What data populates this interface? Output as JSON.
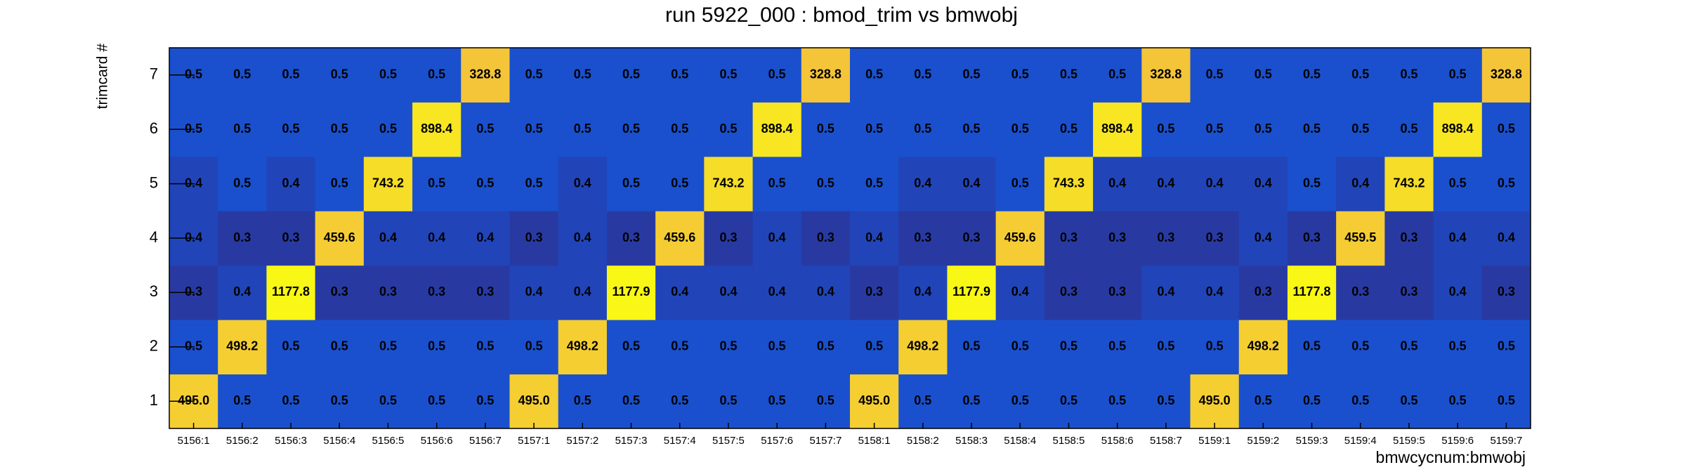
{
  "chart_data": {
    "type": "heatmap",
    "title": "run 5922_000 : bmod_trim vs bmwobj",
    "x_label": "bmwcycnum:bmwobj",
    "y_label": "trimcard #",
    "categories": [
      "5156:1",
      "5156:2",
      "5156:3",
      "5156:4",
      "5156:5",
      "5156:6",
      "5156:7",
      "5157:1",
      "5157:2",
      "5157:3",
      "5157:4",
      "5157:5",
      "5157:6",
      "5157:7",
      "5158:1",
      "5158:2",
      "5158:3",
      "5158:4",
      "5158:5",
      "5158:6",
      "5158:7",
      "5159:1",
      "5159:2",
      "5159:3",
      "5159:4",
      "5159:5",
      "5159:6",
      "5159:7"
    ],
    "ylim": [
      0.5,
      7.5
    ],
    "yticks": [
      1,
      2,
      3,
      4,
      5,
      6,
      7
    ],
    "values": [
      [
        495,
        0.5,
        0.5,
        0.5,
        0.5,
        0.5,
        0.5,
        495,
        0.5,
        0.5,
        0.5,
        0.5,
        0.5,
        0.5,
        495,
        0.5,
        0.5,
        0.5,
        0.5,
        0.5,
        0.5,
        495,
        0.5,
        0.5,
        0.5,
        0.5,
        0.5,
        0.5
      ],
      [
        0.5,
        498.2,
        0.5,
        0.5,
        0.5,
        0.5,
        0.5,
        0.5,
        498.2,
        0.5,
        0.5,
        0.5,
        0.5,
        0.5,
        0.5,
        498.2,
        0.5,
        0.5,
        0.5,
        0.5,
        0.5,
        0.5,
        498.2,
        0.5,
        0.5,
        0.5,
        0.5,
        0.5
      ],
      [
        0.3,
        0.4,
        1177.8,
        0.3,
        0.3,
        0.3,
        0.3,
        0.4,
        0.4,
        1177.9,
        0.4,
        0.4,
        0.4,
        0.4,
        0.3,
        0.4,
        1177.9,
        0.4,
        0.3,
        0.3,
        0.4,
        0.4,
        0.3,
        1177.8,
        0.3,
        0.3,
        0.4,
        0.3
      ],
      [
        0.4,
        0.3,
        0.3,
        459.6,
        0.4,
        0.4,
        0.4,
        0.3,
        0.4,
        0.3,
        459.6,
        0.3,
        0.4,
        0.3,
        0.4,
        0.3,
        0.3,
        459.6,
        0.3,
        0.3,
        0.3,
        0.3,
        0.4,
        0.3,
        459.5,
        0.3,
        0.4,
        0.4
      ],
      [
        0.4,
        0.5,
        0.4,
        0.5,
        743.2,
        0.5,
        0.5,
        0.5,
        0.4,
        0.5,
        0.5,
        743.2,
        0.5,
        0.5,
        0.5,
        0.4,
        0.4,
        0.5,
        743.3,
        0.4,
        0.4,
        0.4,
        0.4,
        0.5,
        0.4,
        743.2,
        0.5,
        0.5
      ],
      [
        0.5,
        0.5,
        0.5,
        0.5,
        0.5,
        898.4,
        0.5,
        0.5,
        0.5,
        0.5,
        0.5,
        0.5,
        898.4,
        0.5,
        0.5,
        0.5,
        0.5,
        0.5,
        0.5,
        898.4,
        0.5,
        0.5,
        0.5,
        0.5,
        0.5,
        0.5,
        898.4,
        0.5
      ],
      [
        0.5,
        0.5,
        0.5,
        0.5,
        0.5,
        0.5,
        328.8,
        0.5,
        0.5,
        0.5,
        0.5,
        0.5,
        0.5,
        328.8,
        0.5,
        0.5,
        0.5,
        0.5,
        0.5,
        0.5,
        328.8,
        0.5,
        0.5,
        0.5,
        0.5,
        0.5,
        0.5,
        328.8
      ]
    ],
    "value_labels": [
      [
        "495.0",
        "0.5",
        "0.5",
        "0.5",
        "0.5",
        "0.5",
        "0.5",
        "495.0",
        "0.5",
        "0.5",
        "0.5",
        "0.5",
        "0.5",
        "0.5",
        "495.0",
        "0.5",
        "0.5",
        "0.5",
        "0.5",
        "0.5",
        "0.5",
        "495.0",
        "0.5",
        "0.5",
        "0.5",
        "0.5",
        "0.5",
        "0.5"
      ],
      [
        "0.5",
        "498.2",
        "0.5",
        "0.5",
        "0.5",
        "0.5",
        "0.5",
        "0.5",
        "498.2",
        "0.5",
        "0.5",
        "0.5",
        "0.5",
        "0.5",
        "0.5",
        "498.2",
        "0.5",
        "0.5",
        "0.5",
        "0.5",
        "0.5",
        "0.5",
        "498.2",
        "0.5",
        "0.5",
        "0.5",
        "0.5",
        "0.5"
      ],
      [
        "0.3",
        "0.4",
        "1177.8",
        "0.3",
        "0.3",
        "0.3",
        "0.3",
        "0.4",
        "0.4",
        "1177.9",
        "0.4",
        "0.4",
        "0.4",
        "0.4",
        "0.3",
        "0.4",
        "1177.9",
        "0.4",
        "0.3",
        "0.3",
        "0.4",
        "0.4",
        "0.3",
        "1177.8",
        "0.3",
        "0.3",
        "0.4",
        "0.3"
      ],
      [
        "0.4",
        "0.3",
        "0.3",
        "459.6",
        "0.4",
        "0.4",
        "0.4",
        "0.3",
        "0.4",
        "0.3",
        "459.6",
        "0.3",
        "0.4",
        "0.3",
        "0.4",
        "0.3",
        "0.3",
        "459.6",
        "0.3",
        "0.3",
        "0.3",
        "0.3",
        "0.4",
        "0.3",
        "459.5",
        "0.3",
        "0.4",
        "0.4"
      ],
      [
        "0.4",
        "0.5",
        "0.4",
        "0.5",
        "743.2",
        "0.5",
        "0.5",
        "0.5",
        "0.4",
        "0.5",
        "0.5",
        "743.2",
        "0.5",
        "0.5",
        "0.5",
        "0.4",
        "0.4",
        "0.5",
        "743.3",
        "0.4",
        "0.4",
        "0.4",
        "0.4",
        "0.5",
        "0.4",
        "743.2",
        "0.5",
        "0.5"
      ],
      [
        "0.5",
        "0.5",
        "0.5",
        "0.5",
        "0.5",
        "898.4",
        "0.5",
        "0.5",
        "0.5",
        "0.5",
        "0.5",
        "0.5",
        "898.4",
        "0.5",
        "0.5",
        "0.5",
        "0.5",
        "0.5",
        "0.5",
        "898.4",
        "0.5",
        "0.5",
        "0.5",
        "0.5",
        "0.5",
        "0.5",
        "898.4",
        "0.5"
      ],
      [
        "0.5",
        "0.5",
        "0.5",
        "0.5",
        "0.5",
        "0.5",
        "328.8",
        "0.5",
        "0.5",
        "0.5",
        "0.5",
        "0.5",
        "0.5",
        "328.8",
        "0.5",
        "0.5",
        "0.5",
        "0.5",
        "0.5",
        "0.5",
        "328.8",
        "0.5",
        "0.5",
        "0.5",
        "0.5",
        "0.5",
        "0.5",
        "328.8"
      ]
    ],
    "colorscale": [
      {
        "value": 0.3,
        "color": "#283aa2"
      },
      {
        "value": 0.5,
        "color": "#1a50cd"
      },
      {
        "value": 300,
        "color": "#f4c23a"
      },
      {
        "value": 1200,
        "color": "#f8f814"
      }
    ]
  }
}
